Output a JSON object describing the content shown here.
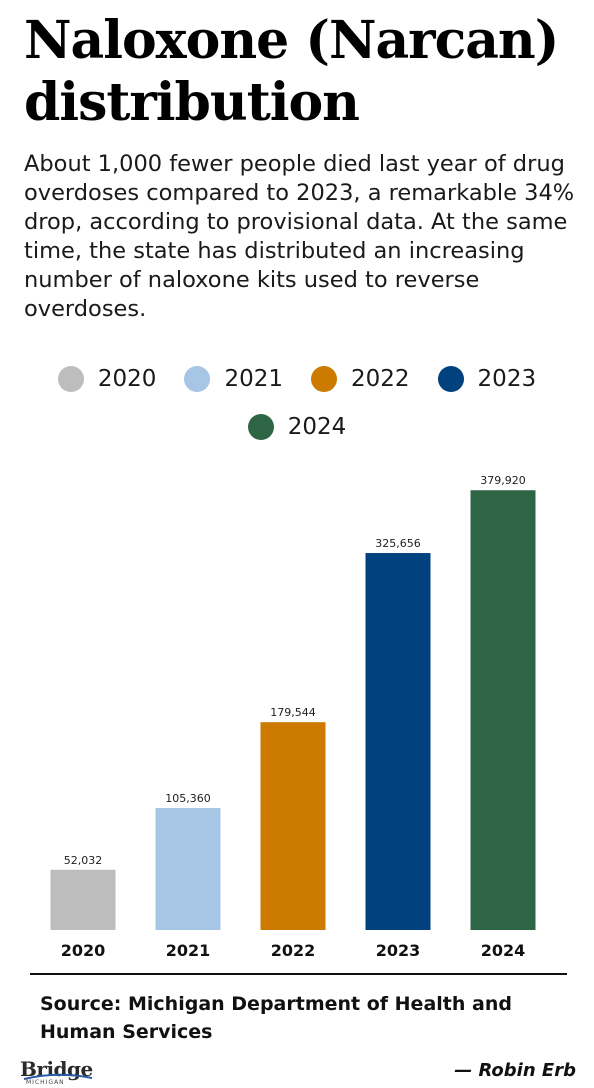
{
  "header": {
    "title": "Naloxone (Narcan) distribution",
    "subtitle": "About 1,000 fewer people died last year of drug overdoses compared to 2023, a remarkable 34% drop, according to provisional data. At the same time, the state has distributed an increasing number of naloxone kits used to reverse overdoses."
  },
  "chart_data": {
    "type": "bar",
    "title": "",
    "xlabel": "",
    "ylabel": "",
    "categories": [
      "2020",
      "2021",
      "2022",
      "2023",
      "2024"
    ],
    "values": [
      52032,
      105360,
      179544,
      325656,
      379920
    ],
    "value_labels": [
      "52,032",
      "105,360",
      "179,544",
      "325,656",
      "379,920"
    ],
    "colors": [
      "#bdbdbd",
      "#a7c5e5",
      "#cc7a00",
      "#00417e",
      "#2e6544"
    ],
    "ylim": [
      0,
      400000
    ],
    "grid": false,
    "legend": {
      "placement": "top",
      "entries": [
        "2020",
        "2021",
        "2022",
        "2023",
        "2024"
      ]
    }
  },
  "footer": {
    "source": "Source: Michigan Department of Health and Human Services",
    "credit": "— Robin Erb",
    "logo_text": "Bridge",
    "logo_subtext": "MICHIGAN"
  }
}
